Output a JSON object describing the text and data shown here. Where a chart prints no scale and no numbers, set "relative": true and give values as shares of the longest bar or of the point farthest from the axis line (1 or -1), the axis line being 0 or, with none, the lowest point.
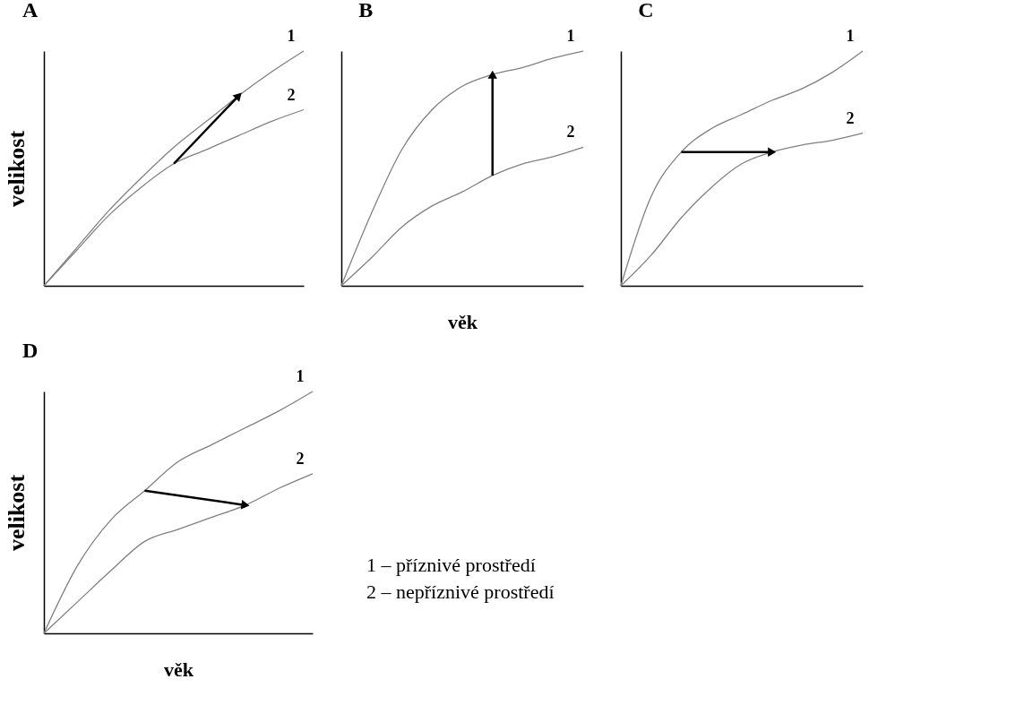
{
  "chart_data": [
    {
      "type": "line",
      "title": "A",
      "ylabel": "velikost",
      "categories": [
        null,
        null,
        null,
        null,
        null,
        null,
        null,
        null,
        null
      ],
      "relative": true,
      "grid": false,
      "series": [
        {
          "name": "1",
          "color": "#808080",
          "values": [
            0,
            0.16,
            0.32,
            0.46,
            0.59,
            0.7,
            0.81,
            0.91,
            1
          ]
        },
        {
          "name": "2",
          "color": "#808080",
          "values": [
            0,
            0.15,
            0.3,
            0.42,
            0.52,
            0.58,
            0.64,
            0.7,
            0.75
          ]
        }
      ]
    },
    {
      "type": "line",
      "title": "B",
      "xlabel": "věk",
      "categories": [
        null,
        null,
        null,
        null,
        null,
        null,
        null,
        null,
        null
      ],
      "relative": true,
      "grid": false,
      "series": [
        {
          "name": "1",
          "color": "#808080",
          "values": [
            0,
            0.31,
            0.58,
            0.75,
            0.85,
            0.9,
            0.93,
            0.97,
            1
          ]
        },
        {
          "name": "2",
          "color": "#808080",
          "values": [
            0,
            0.12,
            0.25,
            0.34,
            0.4,
            0.47,
            0.52,
            0.55,
            0.59
          ]
        }
      ]
    },
    {
      "type": "line",
      "title": "C",
      "categories": [
        null,
        null,
        null,
        null,
        null,
        null,
        null,
        null,
        null
      ],
      "relative": true,
      "grid": false,
      "series": [
        {
          "name": "1",
          "color": "#808080",
          "values": [
            0,
            0.38,
            0.57,
            0.67,
            0.73,
            0.79,
            0.84,
            0.91,
            1
          ]
        },
        {
          "name": "2",
          "color": "#808080",
          "values": [
            0,
            0.13,
            0.29,
            0.42,
            0.52,
            0.57,
            0.6,
            0.62,
            0.65
          ]
        }
      ]
    },
    {
      "type": "line",
      "title": "D",
      "ylabel": "velikost",
      "xlabel": "věk",
      "categories": [
        null,
        null,
        null,
        null,
        null,
        null,
        null,
        null,
        null
      ],
      "relative": true,
      "grid": false,
      "annotations": [
        "1 – příznivé prostředí",
        "2 – nepříznivé prostředí"
      ],
      "series": [
        {
          "name": "1",
          "color": "#808080",
          "values": [
            0,
            0.28,
            0.47,
            0.59,
            0.71,
            0.78,
            0.85,
            0.92,
            1
          ]
        },
        {
          "name": "2",
          "color": "#808080",
          "values": [
            0,
            0.13,
            0.26,
            0.38,
            0.43,
            0.48,
            0.53,
            0.6,
            0.66
          ]
        }
      ]
    }
  ]
}
